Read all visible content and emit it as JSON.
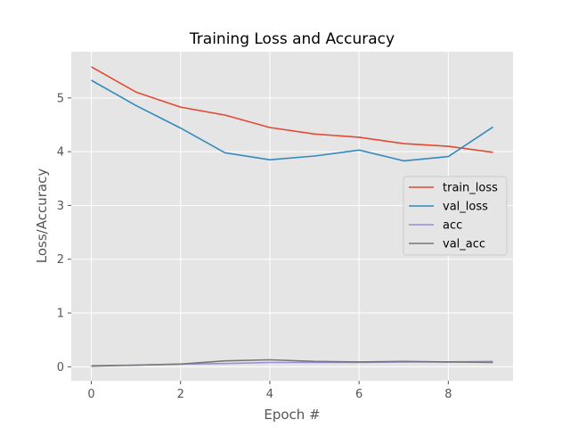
{
  "chart_data": {
    "type": "line",
    "title": "Training Loss and Accuracy",
    "xlabel": "Epoch #",
    "ylabel": "Loss/Accuracy",
    "x": [
      0,
      1,
      2,
      3,
      4,
      5,
      6,
      7,
      8,
      9
    ],
    "xlim": [
      -0.45,
      9.45
    ],
    "ylim": [
      -0.26,
      5.86
    ],
    "xticks": [
      0,
      2,
      4,
      6,
      8
    ],
    "yticks": [
      0,
      1,
      2,
      3,
      4,
      5
    ],
    "grid": true,
    "legend_position": "center-right",
    "series": [
      {
        "name": "train_loss",
        "color": "#E24A33",
        "values": [
          5.58,
          5.11,
          4.83,
          4.68,
          4.45,
          4.33,
          4.27,
          4.15,
          4.1,
          3.99
        ]
      },
      {
        "name": "val_loss",
        "color": "#348ABD",
        "values": [
          5.33,
          4.86,
          4.44,
          3.98,
          3.85,
          3.92,
          4.03,
          3.83,
          3.91,
          4.46
        ]
      },
      {
        "name": "acc",
        "color": "#988ED5",
        "values": [
          0.02,
          0.03,
          0.05,
          0.06,
          0.08,
          0.08,
          0.08,
          0.09,
          0.09,
          0.1
        ]
      },
      {
        "name": "val_acc",
        "color": "#777777",
        "values": [
          0.01,
          0.03,
          0.05,
          0.11,
          0.13,
          0.1,
          0.09,
          0.1,
          0.09,
          0.08
        ]
      }
    ]
  }
}
